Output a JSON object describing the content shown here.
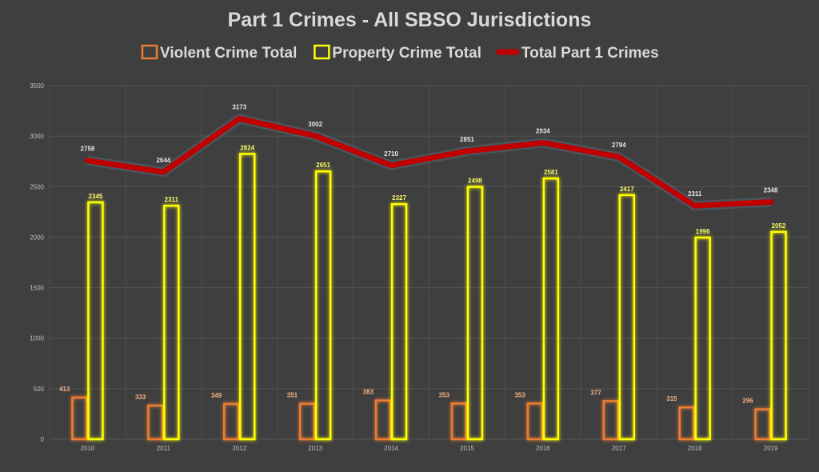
{
  "chart_data": {
    "type": "bar",
    "title": "Part 1 Crimes - All SBSO Jurisdictions",
    "categories": [
      "2010",
      "2011",
      "2012",
      "2013",
      "2014",
      "2015",
      "2016",
      "2017",
      "2018",
      "2019"
    ],
    "series": [
      {
        "name": "Violent Crime Total",
        "kind": "bar",
        "color": "#ed7d31",
        "values": [
          413,
          333,
          349,
          351,
          383,
          353,
          353,
          377,
          315,
          296
        ]
      },
      {
        "name": "Property Crime Total",
        "kind": "bar",
        "color": "#ffff00",
        "values": [
          2345,
          2311,
          2824,
          2651,
          2327,
          2498,
          2581,
          2417,
          1996,
          2052
        ]
      },
      {
        "name": "Total Part 1 Crimes",
        "kind": "line",
        "color": "#c00000",
        "values": [
          2758,
          2644,
          3173,
          3002,
          2710,
          2851,
          2934,
          2794,
          2311,
          2348
        ]
      }
    ],
    "ylim": [
      0,
      3500
    ],
    "yticks": [
      0,
      500,
      1000,
      1500,
      2000,
      2500,
      3000,
      3500
    ],
    "grid": true,
    "legend": "top",
    "xlabel": "",
    "ylabel": ""
  }
}
